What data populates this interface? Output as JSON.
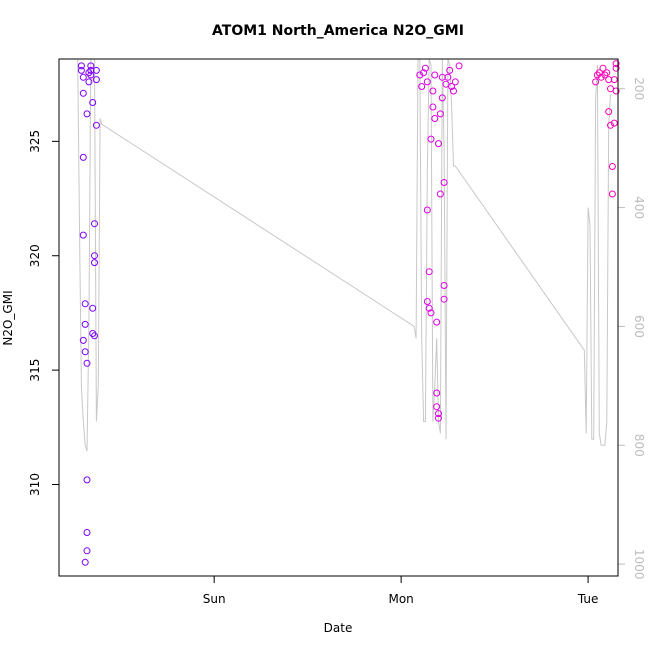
{
  "chart_data": {
    "type": "scatter",
    "title": "ATOM1 North_America N2O_GMI",
    "xlabel": "Date",
    "ylabel": "N2O_GMI",
    "x_unit": "days since Saturday 00:00",
    "xlim": [
      0.17,
      3.16
    ],
    "x_ticks": [
      {
        "value": 1,
        "label": "Sun"
      },
      {
        "value": 2,
        "label": "Mon"
      },
      {
        "value": 3,
        "label": "Tue"
      }
    ],
    "ylim": [
      306.0,
      328.6
    ],
    "y_ticks": [
      310,
      315,
      320,
      325
    ],
    "y2lim": [
      1020,
      150
    ],
    "y2_ticks": [
      200,
      400,
      600,
      800,
      1000
    ],
    "colors": {
      "axis": "#000000",
      "pressure_line": "#c8c8c8",
      "points_start": "#7a00ff",
      "points_mid": "#cc00ff",
      "points_end": "#ff00b4"
    },
    "series": [
      {
        "marker": "open-circle",
        "points": [
          [
            0.29,
            328.3
          ],
          [
            0.29,
            328.1
          ],
          [
            0.3,
            327.8
          ],
          [
            0.3,
            327.1
          ],
          [
            0.3,
            324.3
          ],
          [
            0.3,
            320.9
          ],
          [
            0.31,
            317.9
          ],
          [
            0.31,
            317.0
          ],
          [
            0.3,
            316.3
          ],
          [
            0.31,
            315.8
          ],
          [
            0.32,
            315.3
          ],
          [
            0.32,
            310.2
          ],
          [
            0.32,
            307.9
          ],
          [
            0.32,
            307.1
          ],
          [
            0.31,
            306.6
          ],
          [
            0.32,
            326.2
          ],
          [
            0.33,
            328.0
          ],
          [
            0.33,
            327.6
          ],
          [
            0.34,
            328.3
          ],
          [
            0.34,
            328.1
          ],
          [
            0.34,
            327.9
          ],
          [
            0.35,
            326.7
          ],
          [
            0.35,
            317.7
          ],
          [
            0.35,
            316.6
          ],
          [
            0.36,
            316.5
          ],
          [
            0.36,
            320.0
          ],
          [
            0.36,
            319.7
          ],
          [
            0.36,
            321.4
          ],
          [
            0.37,
            327.7
          ],
          [
            0.37,
            325.7
          ],
          [
            0.37,
            328.1
          ],
          [
            2.1,
            327.9
          ],
          [
            2.11,
            327.4
          ],
          [
            2.12,
            328.0
          ],
          [
            2.13,
            328.2
          ],
          [
            2.14,
            327.6
          ],
          [
            2.14,
            318.0
          ],
          [
            2.14,
            322.0
          ],
          [
            2.15,
            319.3
          ],
          [
            2.15,
            317.7
          ],
          [
            2.16,
            317.5
          ],
          [
            2.16,
            325.1
          ],
          [
            2.17,
            327.2
          ],
          [
            2.17,
            326.5
          ],
          [
            2.18,
            327.9
          ],
          [
            2.18,
            326.0
          ],
          [
            2.19,
            317.1
          ],
          [
            2.19,
            314.0
          ],
          [
            2.19,
            313.4
          ],
          [
            2.2,
            313.1
          ],
          [
            2.2,
            312.9
          ],
          [
            2.2,
            324.9
          ],
          [
            2.21,
            326.2
          ],
          [
            2.21,
            322.7
          ],
          [
            2.22,
            327.8
          ],
          [
            2.22,
            326.9
          ],
          [
            2.23,
            323.2
          ],
          [
            2.23,
            318.1
          ],
          [
            2.23,
            318.7
          ],
          [
            2.24,
            327.5
          ],
          [
            2.25,
            327.8
          ],
          [
            2.26,
            328.1
          ],
          [
            2.27,
            327.4
          ],
          [
            2.28,
            327.2
          ],
          [
            2.29,
            327.6
          ],
          [
            2.31,
            328.3
          ],
          [
            3.04,
            327.6
          ],
          [
            3.05,
            327.9
          ],
          [
            3.06,
            328.0
          ],
          [
            3.07,
            327.8
          ],
          [
            3.08,
            328.2
          ],
          [
            3.09,
            327.9
          ],
          [
            3.1,
            328.0
          ],
          [
            3.11,
            327.7
          ],
          [
            3.11,
            326.3
          ],
          [
            3.12,
            325.7
          ],
          [
            3.12,
            327.3
          ],
          [
            3.13,
            323.9
          ],
          [
            3.13,
            322.7
          ],
          [
            3.14,
            325.8
          ],
          [
            3.14,
            327.7
          ],
          [
            3.15,
            328.2
          ],
          [
            3.15,
            328.4
          ],
          [
            3.15,
            327.2
          ]
        ]
      },
      {
        "axis": "right",
        "line": true,
        "points": [
          [
            0.25,
            150
          ],
          [
            0.27,
            150
          ],
          [
            0.28,
            450
          ],
          [
            0.29,
            700
          ],
          [
            0.3,
            760
          ],
          [
            0.31,
            800
          ],
          [
            0.32,
            810
          ],
          [
            0.33,
            600
          ],
          [
            0.34,
            150
          ],
          [
            0.36,
            150
          ],
          [
            0.37,
            760
          ],
          [
            0.38,
            700
          ],
          [
            0.39,
            250
          ],
          [
            0.4,
            260
          ],
          [
            2.07,
            600
          ],
          [
            2.08,
            620
          ],
          [
            2.09,
            150
          ],
          [
            2.1,
            150
          ],
          [
            2.11,
            620
          ],
          [
            2.12,
            760
          ],
          [
            2.13,
            760
          ],
          [
            2.14,
            340
          ],
          [
            2.15,
            150
          ],
          [
            2.16,
            160
          ],
          [
            2.17,
            760
          ],
          [
            2.18,
            700
          ],
          [
            2.19,
            620
          ],
          [
            2.2,
            760
          ],
          [
            2.21,
            780
          ],
          [
            2.22,
            150
          ],
          [
            2.23,
            300
          ],
          [
            2.24,
            790
          ],
          [
            2.25,
            150
          ],
          [
            2.26,
            160
          ],
          [
            2.27,
            230
          ],
          [
            2.28,
            330
          ],
          [
            2.29,
            330
          ],
          [
            2.98,
            640
          ],
          [
            2.99,
            780
          ],
          [
            3.0,
            400
          ],
          [
            3.01,
            430
          ],
          [
            3.02,
            790
          ],
          [
            3.03,
            790
          ],
          [
            3.04,
            220
          ],
          [
            3.05,
            160
          ],
          [
            3.06,
            780
          ],
          [
            3.07,
            800
          ],
          [
            3.08,
            800
          ],
          [
            3.09,
            800
          ],
          [
            3.1,
            760
          ],
          [
            3.11,
            260
          ],
          [
            3.12,
            210
          ]
        ]
      }
    ]
  }
}
